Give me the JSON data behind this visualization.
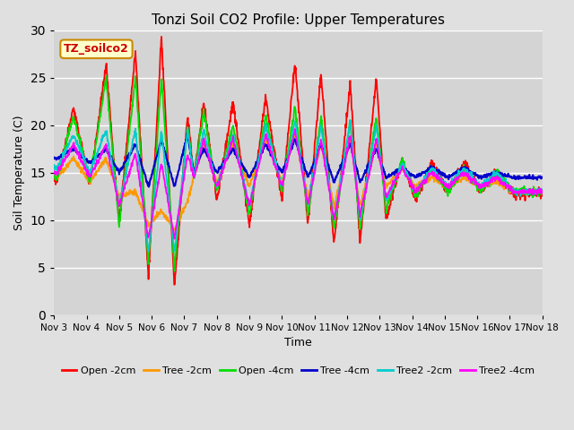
{
  "title": "Tonzi Soil CO2 Profile: Upper Temperatures",
  "xlabel": "Time",
  "ylabel": "Soil Temperature (C)",
  "ylim": [
    0,
    30
  ],
  "xlim": [
    0,
    15
  ],
  "figsize": [
    6.4,
    4.8
  ],
  "dpi": 100,
  "background_color": "#e0e0e0",
  "plot_bg_color": "#d4d4d4",
  "annotation_text": "TZ_soilco2",
  "annotation_bg": "#ffffcc",
  "annotation_edge": "#cc8800",
  "xtick_labels": [
    "Nov 3",
    "Nov 4",
    "Nov 5",
    "Nov 6",
    "Nov 7",
    "Nov 8",
    "Nov 9",
    "Nov 10",
    "Nov 11",
    "Nov 12",
    "Nov 13",
    "Nov 14",
    "Nov 15",
    "Nov 16",
    "Nov 17",
    "Nov 18"
  ],
  "series": [
    {
      "label": "Open -2cm",
      "color": "#ff0000"
    },
    {
      "label": "Tree -2cm",
      "color": "#ff9900"
    },
    {
      "label": "Open -4cm",
      "color": "#00dd00"
    },
    {
      "label": "Tree -4cm",
      "color": "#0000cc"
    },
    {
      "label": "Tree2 -2cm",
      "color": "#00cccc"
    },
    {
      "label": "Tree2 -4cm",
      "color": "#ff00ff"
    }
  ],
  "yticks": [
    0,
    5,
    10,
    15,
    20,
    25,
    30
  ],
  "grid_color": "#bbbbbb",
  "legend_ncol": 6,
  "legend_fontsize": 8
}
